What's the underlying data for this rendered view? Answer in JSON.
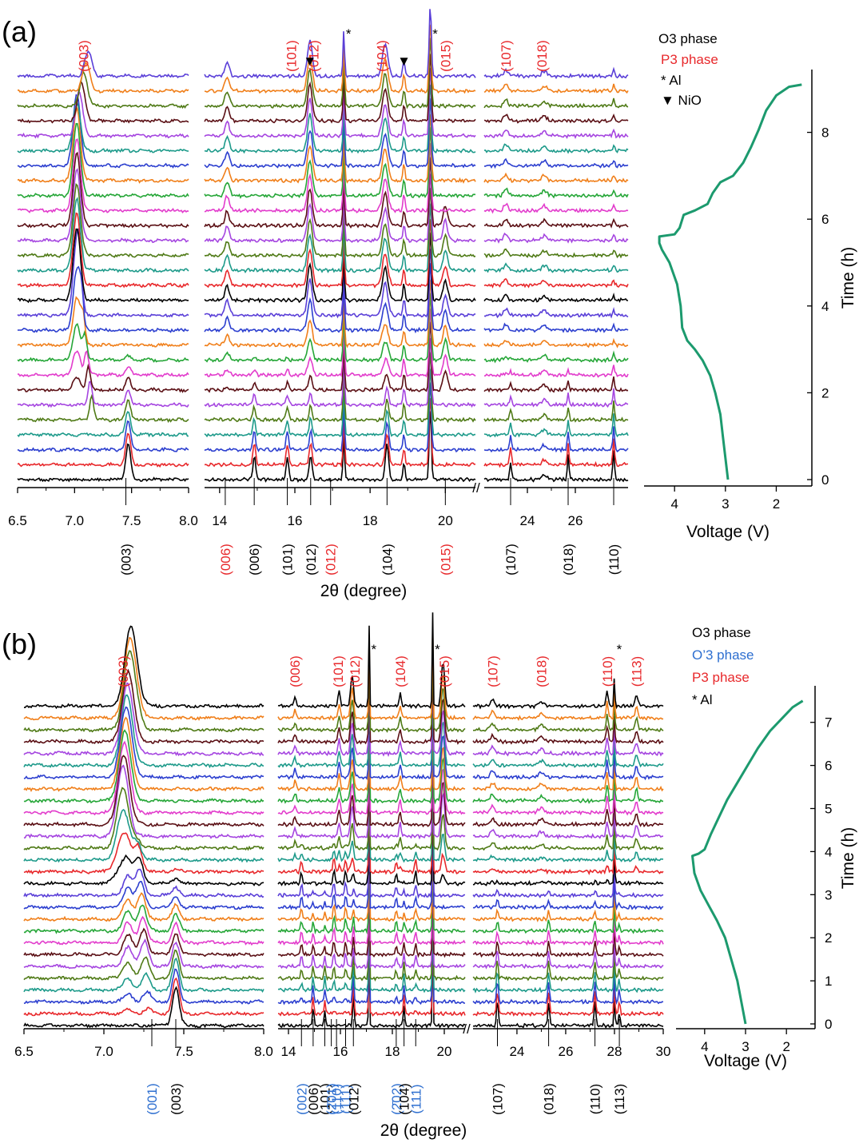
{
  "colors": {
    "black": "#000000",
    "red": "#e8282b",
    "blue": "#2c3fcf",
    "teal": "#1d9a8a",
    "olive": "#4f7a16",
    "purple": "#a545e0",
    "maroon": "#5a0f14",
    "magenta": "#e23ccc",
    "green": "#25a637",
    "orange": "#f07f1a",
    "indigo": "#5a3fd8",
    "voltage": "#1c9a6e",
    "o3": "#000000",
    "p3": "#e8282b",
    "o3prime": "#2e6fd0"
  },
  "chart_data": [
    {
      "panel": "(a)",
      "type": "line",
      "title": "",
      "xlabel": "2θ (degree)",
      "n_scans": 28,
      "trace_colors": [
        "black",
        "red",
        "blue",
        "teal",
        "olive",
        "purple",
        "maroon",
        "magenta",
        "green",
        "orange",
        "blue",
        "indigo",
        "black",
        "red",
        "teal",
        "olive",
        "purple",
        "maroon",
        "magenta",
        "green",
        "orange",
        "blue",
        "teal",
        "purple",
        "maroon",
        "olive",
        "orange",
        "indigo"
      ],
      "segments": [
        {
          "xlim": [
            6.5,
            8.0
          ],
          "ticks": [
            "6.5",
            "7.0",
            "7.5",
            "8.0"
          ],
          "tick_values": [
            6.5,
            7.0,
            7.5,
            8.0
          ]
        },
        {
          "xlim": [
            13.6,
            20.8
          ],
          "ticks": [
            "14",
            "16",
            "18",
            "20"
          ],
          "tick_values": [
            14,
            16,
            18,
            20
          ]
        },
        {
          "xlim": [
            22.2,
            28.2
          ],
          "ticks": [
            "24",
            "26"
          ],
          "tick_values": [
            24,
            26
          ]
        }
      ],
      "top_labels_p3": [
        {
          "hkl": "(003)",
          "x": 7.08
        },
        {
          "hkl": "(101)",
          "x": 15.9
        },
        {
          "hkl": "(012)",
          "x": 16.5
        },
        {
          "hkl": "(104)",
          "x": 18.3
        },
        {
          "hkl": "(015)",
          "x": 20.0
        },
        {
          "hkl": "(107)",
          "x": 23.1
        },
        {
          "hkl": "(018)",
          "x": 24.6
        }
      ],
      "bottom_labels": [
        {
          "hkl": "(003)",
          "x": 7.45,
          "phase": "O3"
        },
        {
          "hkl": "(006)",
          "x": 14.15,
          "phase": "P3"
        },
        {
          "hkl": "(006)",
          "x": 14.92,
          "phase": "O3"
        },
        {
          "hkl": "(101)",
          "x": 15.8,
          "phase": "O3"
        },
        {
          "hkl": "(012)",
          "x": 16.42,
          "phase": "O3"
        },
        {
          "hkl": "(012)",
          "x": 16.95,
          "phase": "P3"
        },
        {
          "hkl": "(104)",
          "x": 18.45,
          "phase": "O3"
        },
        {
          "hkl": "(015)",
          "x": 20.0,
          "phase": "P3"
        },
        {
          "hkl": "(107)",
          "x": 23.3,
          "phase": "O3"
        },
        {
          "hkl": "(018)",
          "x": 25.7,
          "phase": "O3"
        },
        {
          "hkl": "(110)",
          "x": 27.6,
          "phase": "O3"
        }
      ],
      "markers": [
        {
          "type": "Al",
          "symbol": "*",
          "x": 17.3
        },
        {
          "type": "Al",
          "symbol": "*",
          "x": 19.6
        },
        {
          "type": "NiO",
          "symbol": "▼",
          "x": 16.4
        },
        {
          "type": "NiO",
          "symbol": "▼",
          "x": 18.9
        }
      ],
      "legend": [
        {
          "label": "O3 phase",
          "color": "#000000"
        },
        {
          "label": "P3 phase",
          "color": "#e8282b"
        },
        {
          "label": "* Al",
          "color": "#000000"
        },
        {
          "label": "▼ NiO",
          "color": "#000000"
        }
      ],
      "voltage_curve": {
        "xlabel": "Voltage (V)",
        "ylabel": "Time (h)",
        "xlim": [
          4.6,
          1.3
        ],
        "ylim": [
          0,
          9.3
        ],
        "xticks": [
          "4",
          "3",
          "2"
        ],
        "xtick_values": [
          4,
          3,
          2
        ],
        "yticks": [
          "0",
          "2",
          "4",
          "6",
          "8"
        ],
        "ytick_values": [
          0,
          2,
          4,
          6,
          8
        ],
        "points": [
          [
            2.95,
            0
          ],
          [
            3.0,
            0.5
          ],
          [
            3.05,
            1.0
          ],
          [
            3.1,
            1.5
          ],
          [
            3.2,
            2.0
          ],
          [
            3.3,
            2.4
          ],
          [
            3.45,
            2.75
          ],
          [
            3.6,
            3.0
          ],
          [
            3.75,
            3.2
          ],
          [
            3.85,
            3.5
          ],
          [
            3.88,
            4.0
          ],
          [
            3.95,
            4.5
          ],
          [
            4.1,
            5.0
          ],
          [
            4.25,
            5.3
          ],
          [
            4.3,
            5.45
          ],
          [
            4.3,
            5.6
          ],
          [
            4.0,
            5.65
          ],
          [
            3.9,
            5.8
          ],
          [
            3.82,
            6.1
          ],
          [
            3.6,
            6.2
          ],
          [
            3.35,
            6.35
          ],
          [
            3.25,
            6.6
          ],
          [
            3.1,
            6.85
          ],
          [
            2.85,
            7.0
          ],
          [
            2.65,
            7.3
          ],
          [
            2.5,
            7.65
          ],
          [
            2.35,
            8.05
          ],
          [
            2.2,
            8.5
          ],
          [
            2.0,
            8.85
          ],
          [
            1.75,
            9.05
          ],
          [
            1.5,
            9.1
          ]
        ]
      }
    },
    {
      "panel": "(b)",
      "type": "line",
      "title": "",
      "xlabel": "2θ (degree)",
      "n_scans": 28,
      "trace_colors": [
        "black",
        "red",
        "blue",
        "teal",
        "olive",
        "purple",
        "maroon",
        "magenta",
        "green",
        "orange",
        "blue",
        "indigo",
        "black",
        "red",
        "teal",
        "olive",
        "purple",
        "maroon",
        "magenta",
        "green",
        "orange",
        "blue",
        "teal",
        "purple",
        "maroon",
        "olive",
        "orange",
        "black"
      ],
      "segments": [
        {
          "xlim": [
            6.5,
            8.0
          ],
          "ticks": [
            "6.5",
            "7.0",
            "7.5",
            "8.0"
          ],
          "tick_values": [
            6.5,
            7.0,
            7.5,
            8.0
          ]
        },
        {
          "xlim": [
            13.6,
            20.8
          ],
          "ticks": [
            "14",
            "16",
            "18",
            "20"
          ],
          "tick_values": [
            14,
            16,
            18,
            20
          ]
        },
        {
          "xlim": [
            22.2,
            30.0
          ],
          "ticks": [
            "24",
            "26",
            "28",
            "30"
          ],
          "tick_values": [
            24,
            26,
            28,
            30
          ]
        }
      ],
      "top_labels_p3": [
        {
          "hkl": "(003)",
          "x": 7.12
        },
        {
          "hkl": "(006)",
          "x": 14.25
        },
        {
          "hkl": "(101)",
          "x": 15.9
        },
        {
          "hkl": "(012)",
          "x": 16.55
        },
        {
          "hkl": "(104)",
          "x": 18.3
        },
        {
          "hkl": "(015)",
          "x": 20.0
        },
        {
          "hkl": "(107)",
          "x": 23.0
        },
        {
          "hkl": "(018)",
          "x": 25.0
        },
        {
          "hkl": "(110)",
          "x": 27.7
        },
        {
          "hkl": "(113)",
          "x": 28.9
        }
      ],
      "bottom_labels": [
        {
          "hkl": "(001)",
          "x": 7.3,
          "phase": "O'3"
        },
        {
          "hkl": "(003)",
          "x": 7.45,
          "phase": "O3"
        },
        {
          "hkl": "(002)",
          "x": 14.5,
          "phase": "O'3"
        },
        {
          "hkl": "(006)",
          "x": 14.95,
          "phase": "O3"
        },
        {
          "hkl": "(101)",
          "x": 15.4,
          "phase": "O3"
        },
        {
          "hkl": "(2̄01)",
          "x": 15.65,
          "phase": "O'3"
        },
        {
          "hkl": "(110)",
          "x": 15.85,
          "phase": "O'3"
        },
        {
          "hkl": "(111)",
          "x": 16.2,
          "phase": "O'3"
        },
        {
          "hkl": "(012)",
          "x": 16.5,
          "phase": "O3"
        },
        {
          "hkl": "(2̄02)",
          "x": 18.15,
          "phase": "O'3"
        },
        {
          "hkl": "(104)",
          "x": 18.45,
          "phase": "O3"
        },
        {
          "hkl": "(111)",
          "x": 18.9,
          "phase": "O'3"
        },
        {
          "hkl": "(107)",
          "x": 23.2,
          "phase": "O3"
        },
        {
          "hkl": "(018)",
          "x": 25.3,
          "phase": "O3"
        },
        {
          "hkl": "(110)",
          "x": 27.2,
          "phase": "O3"
        },
        {
          "hkl": "(113)",
          "x": 28.2,
          "phase": "O3"
        }
      ],
      "markers": [
        {
          "type": "Al",
          "symbol": "*",
          "x": 17.1
        },
        {
          "type": "Al",
          "symbol": "*",
          "x": 19.55
        },
        {
          "type": "Al",
          "symbol": "*",
          "x": 28.0
        }
      ],
      "legend": [
        {
          "label": "O3 phase",
          "color": "#000000"
        },
        {
          "label": "O’3 phase",
          "color": "#2e6fd0"
        },
        {
          "label": "P3 phase",
          "color": "#e8282b"
        },
        {
          "label": "* Al",
          "color": "#000000"
        }
      ],
      "voltage_curve": {
        "xlabel": "Voltage (V)",
        "ylabel": "Time (h)",
        "xlim": [
          4.7,
          1.3
        ],
        "ylim": [
          0,
          7.7
        ],
        "xticks": [
          "4",
          "3",
          "2"
        ],
        "xtick_values": [
          4,
          3,
          2
        ],
        "yticks": [
          "0",
          "1",
          "2",
          "3",
          "4",
          "5",
          "6",
          "7"
        ],
        "ytick_values": [
          0,
          1,
          2,
          3,
          4,
          5,
          6,
          7
        ],
        "points": [
          [
            3.0,
            0
          ],
          [
            3.1,
            0.5
          ],
          [
            3.2,
            1.0
          ],
          [
            3.35,
            1.5
          ],
          [
            3.5,
            2.0
          ],
          [
            3.7,
            2.4
          ],
          [
            3.9,
            2.75
          ],
          [
            4.1,
            3.1
          ],
          [
            4.25,
            3.5
          ],
          [
            4.3,
            3.9
          ],
          [
            4.15,
            3.95
          ],
          [
            4.0,
            4.05
          ],
          [
            3.85,
            4.4
          ],
          [
            3.65,
            4.8
          ],
          [
            3.45,
            5.2
          ],
          [
            3.2,
            5.6
          ],
          [
            2.95,
            6.0
          ],
          [
            2.7,
            6.4
          ],
          [
            2.4,
            6.8
          ],
          [
            2.1,
            7.1
          ],
          [
            1.85,
            7.35
          ],
          [
            1.6,
            7.5
          ]
        ]
      }
    }
  ]
}
